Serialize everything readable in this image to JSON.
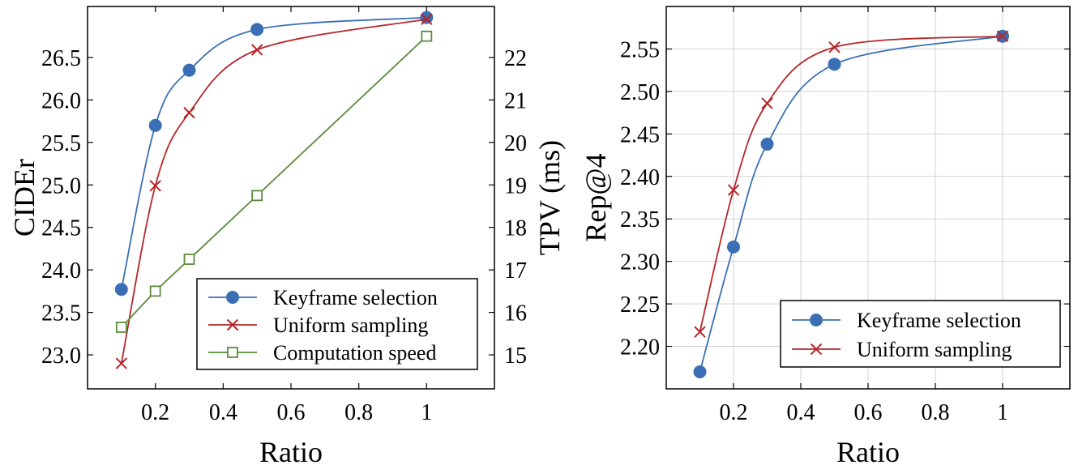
{
  "colors": {
    "keyframe": "#3a6fb5",
    "uniform": "#b5262a",
    "speed": "#5a8b3a"
  },
  "chart_data": [
    {
      "type": "line",
      "xlabel": "Ratio",
      "ylabel": "CIDEr",
      "y2label": "TPV (ms)",
      "xlim": [
        0,
        1.2
      ],
      "ylim": [
        22.6,
        27.1
      ],
      "y2lim": [
        14.2,
        23.2
      ],
      "xticks": [
        0.2,
        0.4,
        0.6,
        0.8,
        1.0
      ],
      "xtick_labels": [
        "0.2",
        "0.4",
        "0.6",
        "0.8",
        "1"
      ],
      "yticks": [
        23.0,
        23.5,
        24.0,
        24.5,
        25.0,
        25.5,
        26.0,
        26.5
      ],
      "ytick_labels": [
        "23.0",
        "23.5",
        "24.0",
        "24.5",
        "25.0",
        "25.5",
        "26.0",
        "26.5"
      ],
      "y2ticks": [
        15,
        16,
        17,
        18,
        19,
        20,
        21,
        22
      ],
      "y2tick_labels": [
        "15",
        "16",
        "17",
        "18",
        "19",
        "20",
        "21",
        "22"
      ],
      "legend_position": "bottom-right",
      "series": [
        {
          "name": "Keyframe selection",
          "axis": "left",
          "marker": "circle",
          "color_key": "keyframe",
          "x": [
            0.1,
            0.2,
            0.3,
            0.5,
            1.0
          ],
          "values": [
            23.77,
            25.7,
            26.35,
            26.83,
            26.97
          ]
        },
        {
          "name": "Uniform sampling",
          "axis": "left",
          "marker": "cross",
          "color_key": "uniform",
          "x": [
            0.1,
            0.2,
            0.3,
            0.5,
            1.0
          ],
          "values": [
            22.9,
            24.99,
            25.85,
            26.59,
            26.95
          ]
        },
        {
          "name": "Computation speed",
          "axis": "right",
          "marker": "square",
          "color_key": "speed",
          "x": [
            0.1,
            0.2,
            0.3,
            0.5,
            1.0
          ],
          "values": [
            15.65,
            16.5,
            17.25,
            18.75,
            22.5
          ]
        }
      ]
    },
    {
      "type": "line",
      "xlabel": "Ratio",
      "ylabel": "Rep@4",
      "xlim": [
        0,
        1.2
      ],
      "ylim": [
        2.15,
        2.6
      ],
      "xticks": [
        0.2,
        0.4,
        0.6,
        0.8,
        1.0
      ],
      "xtick_labels": [
        "0.2",
        "0.4",
        "0.6",
        "0.8",
        "1"
      ],
      "yticks": [
        2.2,
        2.25,
        2.3,
        2.35,
        2.4,
        2.45,
        2.5,
        2.55
      ],
      "ytick_labels": [
        "2.20",
        "2.25",
        "2.30",
        "2.35",
        "2.40",
        "2.45",
        "2.50",
        "2.55"
      ],
      "legend_position": "bottom-right",
      "series": [
        {
          "name": "Keyframe selection",
          "marker": "circle",
          "color_key": "keyframe",
          "x": [
            0.1,
            0.2,
            0.3,
            0.5,
            1.0
          ],
          "values": [
            2.17,
            2.317,
            2.438,
            2.532,
            2.565
          ]
        },
        {
          "name": "Uniform sampling",
          "marker": "cross",
          "color_key": "uniform",
          "x": [
            0.1,
            0.2,
            0.3,
            0.5,
            1.0
          ],
          "values": [
            2.217,
            2.384,
            2.486,
            2.552,
            2.565
          ]
        }
      ]
    }
  ]
}
